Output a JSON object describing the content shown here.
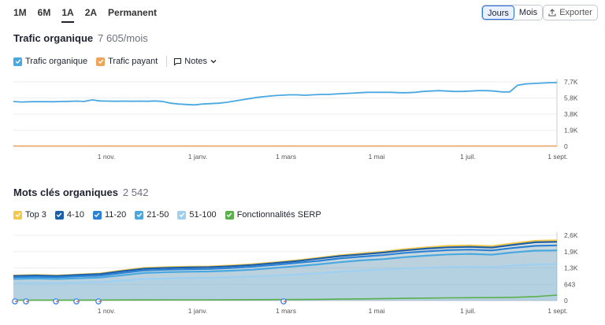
{
  "periods": [
    "1M",
    "6M",
    "1A",
    "2A",
    "Permanent"
  ],
  "active_period": "1A",
  "granularity": {
    "days": "Jours",
    "months": "Mois",
    "active": "Jours"
  },
  "export_label": "Exporter",
  "traffic": {
    "title": "Trafic organique",
    "count": "7 605/mois",
    "legend": [
      {
        "label": "Trafic organique",
        "color": "#4aa8e0",
        "checked": true
      },
      {
        "label": "Trafic payant",
        "color": "#f0a35a",
        "checked": true
      }
    ],
    "notes_label": "Notes"
  },
  "keywords": {
    "title": "Mots clés organiques",
    "count": "2 542",
    "legend": [
      {
        "label": "Top 3",
        "color": "#f2c94c"
      },
      {
        "label": "4-10",
        "color": "#1d5fa8"
      },
      {
        "label": "11-20",
        "color": "#2c82d4"
      },
      {
        "label": "21-50",
        "color": "#4aa8e0"
      },
      {
        "label": "51-100",
        "color": "#9fd0f0"
      },
      {
        "label": "Fonctionnalités SERP",
        "color": "#5ab04a"
      }
    ]
  },
  "chart_data": [
    {
      "type": "line",
      "title": "Trafic organique",
      "x_ticks": [
        "1 nov.",
        "1 janv.",
        "1 mars",
        "1 mai",
        "1 juil.",
        "1 sept."
      ],
      "y_ticks": [
        "7,7K",
        "5,8K",
        "3,8K",
        "1,9K",
        "0"
      ],
      "ylim": [
        0,
        7700
      ],
      "series": [
        {
          "name": "Trafic organique",
          "color": "#4aa8e0",
          "values": [
            5350,
            5300,
            5320,
            5340,
            5330,
            5320,
            5350,
            5370,
            5400,
            5360,
            5550,
            5420,
            5400,
            5380,
            5400,
            5380,
            5400,
            5380,
            5420,
            5350,
            5150,
            5050,
            5000,
            4950,
            5050,
            5100,
            5150,
            5250,
            5400,
            5550,
            5700,
            5850,
            5950,
            6050,
            6100,
            6150,
            6150,
            6100,
            6150,
            6200,
            6200,
            6250,
            6300,
            6350,
            6400,
            6450,
            6450,
            6450,
            6450,
            6400,
            6400,
            6450,
            6550,
            6600,
            6650,
            6600,
            6550,
            6550,
            6600,
            6650,
            6650,
            6600,
            6500,
            6500,
            7300,
            7450,
            7500,
            7550,
            7600,
            7605
          ]
        },
        {
          "name": "Trafic payant",
          "color": "#f0a35a",
          "values": [
            0,
            0
          ]
        }
      ]
    },
    {
      "type": "area",
      "title": "Mots clés organiques",
      "x_ticks": [
        "1 nov.",
        "1 janv.",
        "1 mars",
        "1 mai",
        "1 juil.",
        "1 sept."
      ],
      "y_ticks": [
        "2,6K",
        "1,9K",
        "1,3K",
        "643",
        "0"
      ],
      "ylim": [
        0,
        2600
      ],
      "series": [
        {
          "name": "Top 3",
          "color": "#f2c94c",
          "values": [
            1000,
            1020,
            1000,
            1040,
            1080,
            1200,
            1300,
            1330,
            1350,
            1360,
            1400,
            1450,
            1520,
            1600,
            1700,
            1800,
            1880,
            1950,
            2050,
            2120,
            2180,
            2200,
            2170,
            2280,
            2380,
            2400
          ]
        },
        {
          "name": "4-10",
          "color": "#1d5fa8",
          "values": [
            980,
            1000,
            980,
            1020,
            1060,
            1170,
            1270,
            1300,
            1320,
            1330,
            1370,
            1420,
            1490,
            1570,
            1670,
            1770,
            1840,
            1910,
            2000,
            2070,
            2120,
            2140,
            2110,
            2220,
            2320,
            2340
          ]
        },
        {
          "name": "11-20",
          "color": "#2c82d4",
          "values": [
            930,
            950,
            930,
            970,
            1000,
            1100,
            1200,
            1230,
            1250,
            1260,
            1300,
            1350,
            1420,
            1500,
            1580,
            1680,
            1750,
            1810,
            1900,
            1960,
            2010,
            2030,
            2000,
            2100,
            2180,
            2200
          ]
        },
        {
          "name": "21-50",
          "color": "#4aa8e0",
          "values": [
            860,
            880,
            860,
            890,
            920,
            1010,
            1100,
            1130,
            1150,
            1160,
            1190,
            1230,
            1300,
            1370,
            1440,
            1530,
            1600,
            1650,
            1730,
            1790,
            1840,
            1860,
            1830,
            1920,
            1990,
            2000
          ]
        },
        {
          "name": "51-100",
          "color": "#9fd0f0",
          "values": [
            700,
            710,
            700,
            720,
            740,
            800,
            860,
            880,
            900,
            910,
            930,
            960,
            1000,
            1040,
            1090,
            1150,
            1200,
            1230,
            1280,
            1310,
            1340,
            1350,
            1330,
            1400,
            1440,
            1450
          ]
        },
        {
          "name": "Fonctionnalités SERP",
          "color": "#5ab04a",
          "values": [
            20,
            20,
            20,
            20,
            22,
            25,
            28,
            30,
            30,
            32,
            35,
            38,
            40,
            45,
            50,
            60,
            70,
            80,
            90,
            100,
            110,
            115,
            120,
            130,
            160,
            220
          ]
        }
      ]
    }
  ]
}
